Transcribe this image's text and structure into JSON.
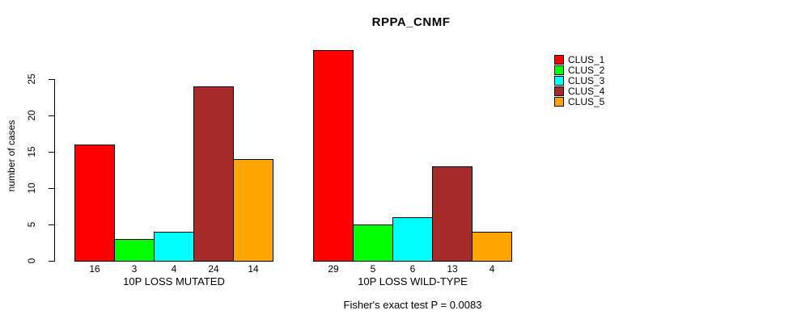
{
  "title": "RPPA_CNMF",
  "y_axis_label": "number of cases",
  "footer": "Fisher's exact test P = 0.0083",
  "chart_data": {
    "type": "bar",
    "title": "RPPA_CNMF",
    "xlabel": "",
    "ylabel": "number of cases",
    "ylim": [
      0,
      29
    ],
    "yticks": [
      0,
      5,
      10,
      15,
      20,
      25
    ],
    "grid": false,
    "legend_position": "right",
    "categories": [
      "10P LOSS MUTATED",
      "10P LOSS WILD-TYPE"
    ],
    "series": [
      {
        "name": "CLUS_1",
        "color": "#FF0000",
        "values": [
          16,
          29
        ]
      },
      {
        "name": "CLUS_2",
        "color": "#00FF00",
        "values": [
          3,
          5
        ]
      },
      {
        "name": "CLUS_3",
        "color": "#00FFFF",
        "values": [
          4,
          6
        ]
      },
      {
        "name": "CLUS_4",
        "color": "#A52A2A",
        "values": [
          24,
          13
        ]
      },
      {
        "name": "CLUS_5",
        "color": "#FFA500",
        "values": [
          14,
          4
        ]
      }
    ],
    "bar_value_labels": [
      [
        16,
        3,
        4,
        24,
        14
      ],
      [
        29,
        5,
        6,
        13,
        4
      ]
    ],
    "annotation": "Fisher's exact test P = 0.0083"
  },
  "colors": {
    "axis": "#000000",
    "background": "#FFFFFF"
  }
}
